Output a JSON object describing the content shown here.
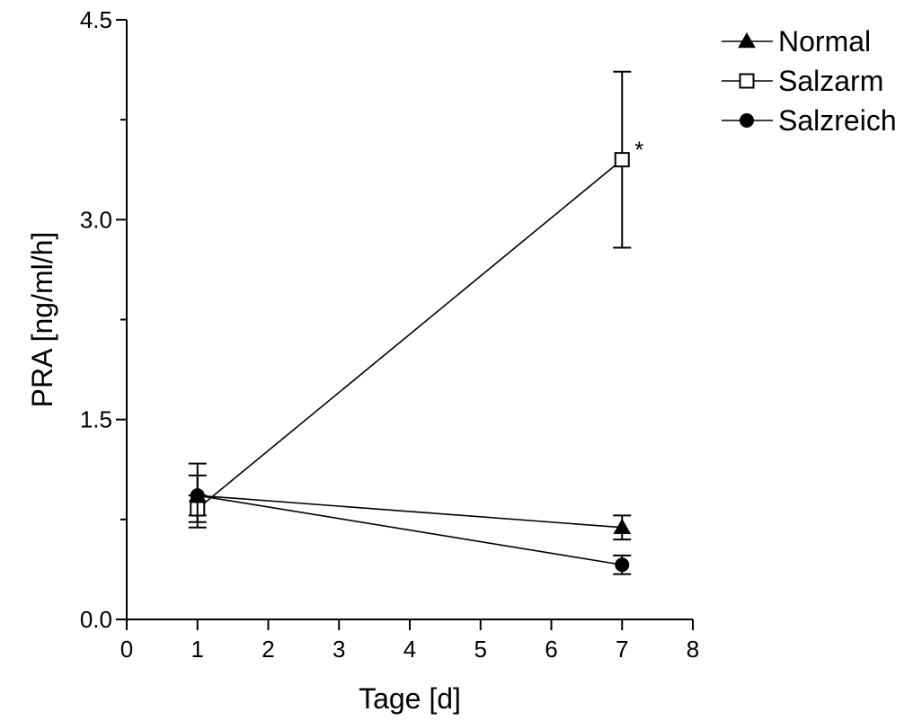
{
  "chart_data": {
    "type": "line",
    "xlabel": "Tage [d]",
    "ylabel": "PRA [ng/ml/h]",
    "xlim": [
      0,
      8
    ],
    "ylim": [
      0,
      4.5
    ],
    "x_ticks": [
      "0",
      "1",
      "2",
      "3",
      "4",
      "5",
      "6",
      "7",
      "8"
    ],
    "y_ticks": [
      "0.0",
      "1.5",
      "3.0",
      "4.5"
    ],
    "grid": false,
    "legend_position": "top-right",
    "series": [
      {
        "name": "Normal",
        "marker": "filled-triangle",
        "x": [
          1,
          7
        ],
        "y": [
          0.93,
          0.69
        ],
        "error": [
          0.15,
          0.09
        ]
      },
      {
        "name": "Salzarm",
        "marker": "open-square",
        "x": [
          1,
          7
        ],
        "y": [
          0.83,
          3.45
        ],
        "error": [
          0.1,
          0.66
        ]
      },
      {
        "name": "Salzreich",
        "marker": "filled-circle",
        "x": [
          1,
          7
        ],
        "y": [
          0.93,
          0.41
        ],
        "error": [
          0.24,
          0.07
        ]
      }
    ],
    "annotations": [
      {
        "text": "*",
        "series": "Salzarm",
        "x": 7
      }
    ]
  }
}
